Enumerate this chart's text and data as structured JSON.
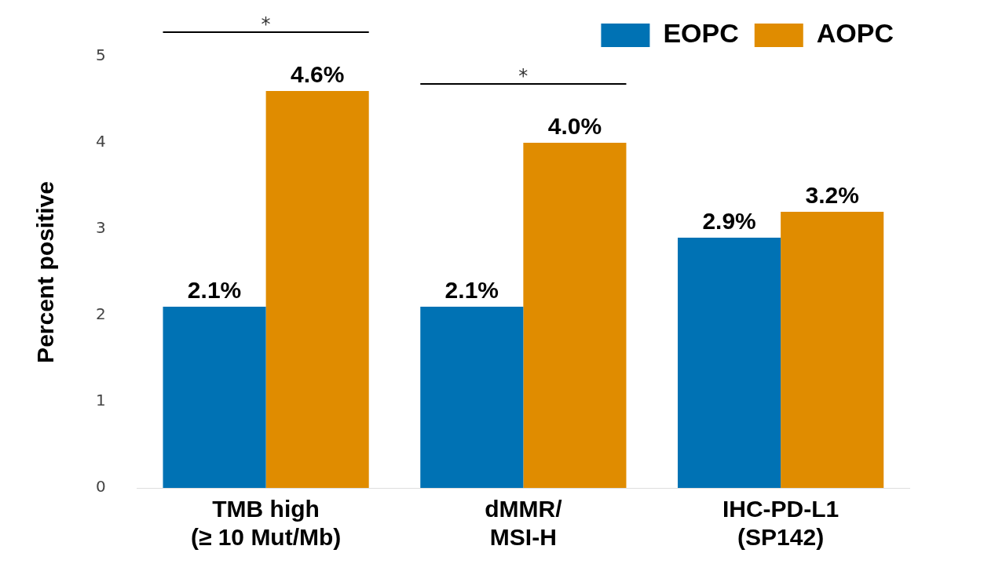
{
  "chart_data": {
    "type": "bar",
    "ylabel": "Percent positive",
    "categories": [
      "TMB high\n(≥ 10 Mut/Mb)",
      "dMMR/\nMSI-H",
      "IHC-PD-L1\n(SP142)"
    ],
    "series": [
      {
        "name": "EOPC",
        "color": "#0072b4",
        "values": [
          2.1,
          2.1,
          2.9
        ],
        "value_labels": [
          "2.1%",
          "2.1%",
          "2.9%"
        ]
      },
      {
        "name": "AOPC",
        "color": "#e08c00",
        "values": [
          4.6,
          4.0,
          3.2
        ],
        "value_labels": [
          "4.6%",
          "4.0%",
          "3.2%"
        ]
      }
    ],
    "ylim": [
      0,
      5
    ],
    "yticks": [
      0,
      1,
      2,
      3,
      4,
      5
    ],
    "grid": false,
    "legend": "top right",
    "annotations": [
      "*",
      "*"
    ]
  }
}
